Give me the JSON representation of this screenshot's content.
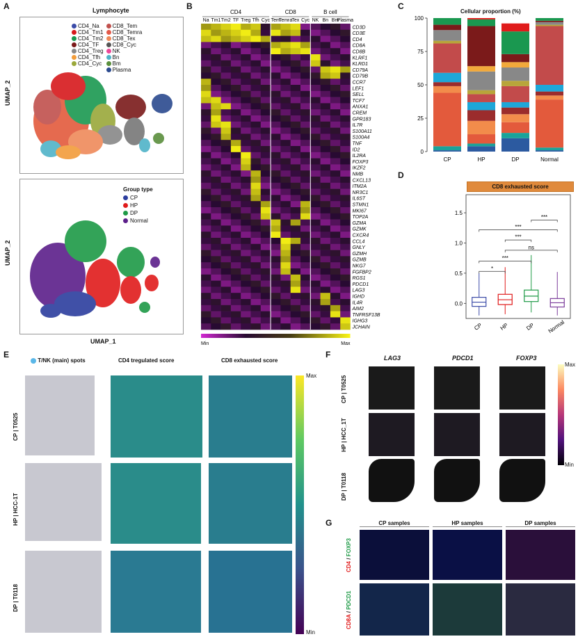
{
  "panels": {
    "a": "A",
    "b": "B",
    "c": "C",
    "d": "D",
    "e": "E",
    "f": "F",
    "g": "G"
  },
  "umap": {
    "title": "Lymphocyte",
    "xlabel": "UMAP_1",
    "ylabel": "UMAP_2",
    "legend_top": [
      {
        "label": "CD4_Na",
        "color": "#3b4ba8"
      },
      {
        "label": "CD4_Tm1",
        "color": "#d7191c"
      },
      {
        "label": "CD4_Tm2",
        "color": "#1a9850"
      },
      {
        "label": "CD4_TF",
        "color": "#7b1a1a"
      },
      {
        "label": "CD4_Treg",
        "color": "#888888"
      },
      {
        "label": "CD4_Tfh",
        "color": "#f29c3a"
      },
      {
        "label": "CD4_Cyc",
        "color": "#9aa83a"
      },
      {
        "label": "CD8_Tem",
        "color": "#c0504d"
      },
      {
        "label": "CD8_Temra",
        "color": "#e35a4a"
      },
      {
        "label": "CD8_Tex",
        "color": "#ef8a5a"
      },
      {
        "label": "CD8_Cyc",
        "color": "#555555"
      },
      {
        "label": "NK",
        "color": "#ec4899"
      },
      {
        "label": "Bn",
        "color": "#4fb3c8"
      },
      {
        "label": "Bm",
        "color": "#5a8f3c"
      },
      {
        "label": "Plasma",
        "color": "#2b4a8f"
      }
    ],
    "legend_bottom_title": "Group type",
    "legend_bottom": [
      {
        "label": "CP",
        "color": "#2c3e9e"
      },
      {
        "label": "HP",
        "color": "#e01b1b"
      },
      {
        "label": "DP",
        "color": "#1e9a46"
      },
      {
        "label": "Normal",
        "color": "#5c1f8a"
      }
    ]
  },
  "heatmap": {
    "groups": [
      {
        "label": "CD4"
      },
      {
        "label": "CD8"
      },
      {
        "label": "B cell"
      }
    ],
    "columns": [
      "Na",
      "Tm1",
      "Tm2",
      "TF",
      "Treg",
      "Tfh",
      "Cyc",
      "Tem",
      "Temra",
      "Tex",
      "Cyc",
      "NK",
      "Bn",
      "Bm",
      "Plasma"
    ],
    "genes": [
      "CD3D",
      "CD3E",
      "CD4",
      "CD8A",
      "CD8B",
      "KLRF1",
      "KLRD1",
      "CD79A",
      "CD79B",
      "CCR7",
      "LEF1",
      "SELL",
      "TCF7",
      "ANXA1",
      "CREM",
      "GPR183",
      "IL7R",
      "S100A11",
      "S100A4",
      "TNF",
      "ID2",
      "IL2RA",
      "FOXP3",
      "IKZF2",
      "NMB",
      "CXCL13",
      "ITM2A",
      "NR3C1",
      "IL6ST",
      "STMN1",
      "MKI67",
      "TOP2A",
      "GZMA",
      "GZMK",
      "CXCR4",
      "CCL4",
      "GNLY",
      "GZMH",
      "GZMB",
      "NKG7",
      "FGFBP2",
      "RGS1",
      "PDCD1",
      "LAG3",
      "IGHD",
      "IL4R",
      "AIM2",
      "TNFRSF13B",
      "IGHG3",
      "JCHAIN"
    ],
    "scale_min": "Min",
    "scale_max": "Max"
  },
  "chart_data": [
    {
      "type": "bar",
      "title": "Cellular proportion (%)",
      "categories": [
        "CP",
        "HP",
        "DP",
        "Normal"
      ],
      "ylim": [
        0,
        100
      ],
      "yticks": [
        "0",
        "25",
        "50",
        "75",
        "100"
      ],
      "stacked": true,
      "series": [
        {
          "color": "#2c5aa0",
          "values": [
            1,
            4,
            10,
            1
          ]
        },
        {
          "color": "#1aa39a",
          "values": [
            3,
            2,
            4,
            2
          ]
        },
        {
          "color": "#e35a3c",
          "values": [
            40,
            7,
            8,
            36
          ]
        },
        {
          "color": "#f28c4b",
          "values": [
            5,
            10,
            6,
            3
          ]
        },
        {
          "color": "#9b2c2c",
          "values": [
            3,
            8,
            5,
            3
          ]
        },
        {
          "color": "#1ea7d8",
          "values": [
            7,
            6,
            4,
            5
          ]
        },
        {
          "color": "#c24b4b",
          "values": [
            22,
            6,
            12,
            44
          ]
        },
        {
          "color": "#b8a53a",
          "values": [
            2,
            3,
            4,
            1
          ]
        },
        {
          "color": "#888888",
          "values": [
            8,
            14,
            10,
            2
          ]
        },
        {
          "color": "#f2a93b",
          "values": [
            0,
            4,
            4,
            0
          ]
        },
        {
          "color": "#7b1a1a",
          "values": [
            4,
            30,
            6,
            1
          ]
        },
        {
          "color": "#1a9850",
          "values": [
            5,
            5,
            17,
            2
          ]
        },
        {
          "color": "#e01b1b",
          "values": [
            0,
            1,
            6,
            0
          ]
        }
      ]
    },
    {
      "type": "box",
      "title": "CD8 exhausted score",
      "categories": [
        "CP",
        "HP",
        "DP",
        "Normal"
      ],
      "ylim": [
        -0.25,
        1.8
      ],
      "yticks": [
        "0.0",
        "0.5",
        "1.0",
        "1.5"
      ],
      "colors": [
        "#3b4ba8",
        "#e01b1b",
        "#1e9a46",
        "#7a3b9a"
      ],
      "boxes": [
        {
          "min": -0.2,
          "q1": -0.05,
          "median": 0.02,
          "q3": 0.1,
          "max": 0.5
        },
        {
          "min": -0.18,
          "q1": -0.02,
          "median": 0.06,
          "q3": 0.15,
          "max": 0.6
        },
        {
          "min": -0.15,
          "q1": 0.03,
          "median": 0.12,
          "q3": 0.22,
          "max": 0.8
        },
        {
          "min": -0.2,
          "q1": -0.06,
          "median": 0.01,
          "q3": 0.08,
          "max": 0.52
        }
      ],
      "comparisons": [
        {
          "pair": [
            "CP",
            "HP"
          ],
          "label": "*"
        },
        {
          "pair": [
            "CP",
            "DP"
          ],
          "label": "***"
        },
        {
          "pair": [
            "HP",
            "Normal"
          ],
          "label": "ns"
        },
        {
          "pair": [
            "HP",
            "DP"
          ],
          "label": "***"
        },
        {
          "pair": [
            "CP",
            "Normal"
          ],
          "label": "***"
        },
        {
          "pair": [
            "DP",
            "Normal"
          ],
          "label": "***"
        }
      ]
    }
  ],
  "spatial": {
    "col_titles": [
      "T/NK (main) spots",
      "CD4 tregulated score",
      "CD8 exhausted score"
    ],
    "rows": [
      "CP | T0525",
      "HP | HCC-1T",
      "DP | T0118"
    ],
    "scale_max": "Max",
    "scale_min": "Min"
  },
  "genes_f": {
    "col_titles": [
      "LAG3",
      "PDCD1",
      "FOXP3"
    ],
    "rows": [
      "CP | T0525",
      "HP | HCC_1T",
      "DP | T0118"
    ],
    "scale_max": "Max",
    "scale_min": "Min"
  },
  "if_panel": {
    "col_titles": [
      "CP samples",
      "HP samples",
      "DP samples"
    ],
    "row1": {
      "a": "CD4",
      "sep": " / ",
      "b": "FOXP3"
    },
    "row2": {
      "a": "CD8A",
      "sep": " / ",
      "b": "PDCD1"
    }
  }
}
